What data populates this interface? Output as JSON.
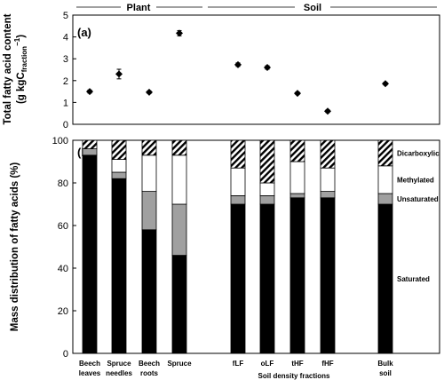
{
  "groups": [
    {
      "label": "Plant",
      "from": 0,
      "to": 3
    },
    {
      "label": "Soil",
      "from": 4,
      "to": 8
    }
  ],
  "soil_fractions_label": "Soil density fractions",
  "chart_data": [
    {
      "type": "scatter",
      "panel_label": "(a)",
      "ylabel": "Total fatty acid content",
      "ylabel_line2": "(g kgC",
      "ylabel_sub": "fraction",
      "ylabel_sup": "−1",
      "ylabel_end": ")",
      "ylim": [
        0,
        5
      ],
      "yticks": [
        0,
        1,
        2,
        3,
        4,
        5
      ],
      "grid": false,
      "categories": [
        [
          "Beech",
          "leaves"
        ],
        [
          "Spruce",
          "needles"
        ],
        [
          "Beech",
          "roots"
        ],
        [
          "Spruce",
          ""
        ],
        [
          "fLF",
          ""
        ],
        [
          "oLF",
          ""
        ],
        [
          "tHF",
          ""
        ],
        [
          "fHF",
          ""
        ],
        [
          "Bulk",
          "soil"
        ]
      ],
      "values": [
        1.5,
        2.3,
        1.47,
        4.17,
        2.73,
        2.6,
        1.42,
        0.6,
        1.86
      ],
      "errors": [
        0.07,
        0.22,
        0.06,
        0.12,
        0.08,
        0.08,
        0.06,
        0.06,
        0.06
      ]
    },
    {
      "type": "bar",
      "stacked": true,
      "panel_label": "(b)",
      "ylabel": "Mass distribution of fatty acids (%)",
      "ylim": [
        0,
        100
      ],
      "yticks": [
        0,
        20,
        40,
        60,
        80,
        100
      ],
      "grid": false,
      "series": [
        {
          "name": "Saturated",
          "values": [
            93,
            82,
            58,
            46,
            70,
            70,
            73,
            73,
            70
          ]
        },
        {
          "name": "Unsaturated",
          "values": [
            3,
            3,
            18,
            24,
            4,
            4,
            2,
            3,
            5
          ]
        },
        {
          "name": "Methylated",
          "values": [
            0,
            6,
            17,
            23,
            13,
            6,
            15,
            11,
            13
          ]
        },
        {
          "name": "Dicarboxylic",
          "values": [
            4,
            9,
            7,
            7,
            13,
            20,
            10,
            13,
            12
          ]
        }
      ],
      "series_fill": [
        "#000000",
        "#a0a0a0",
        "#ffffff",
        "hatch"
      ]
    }
  ]
}
